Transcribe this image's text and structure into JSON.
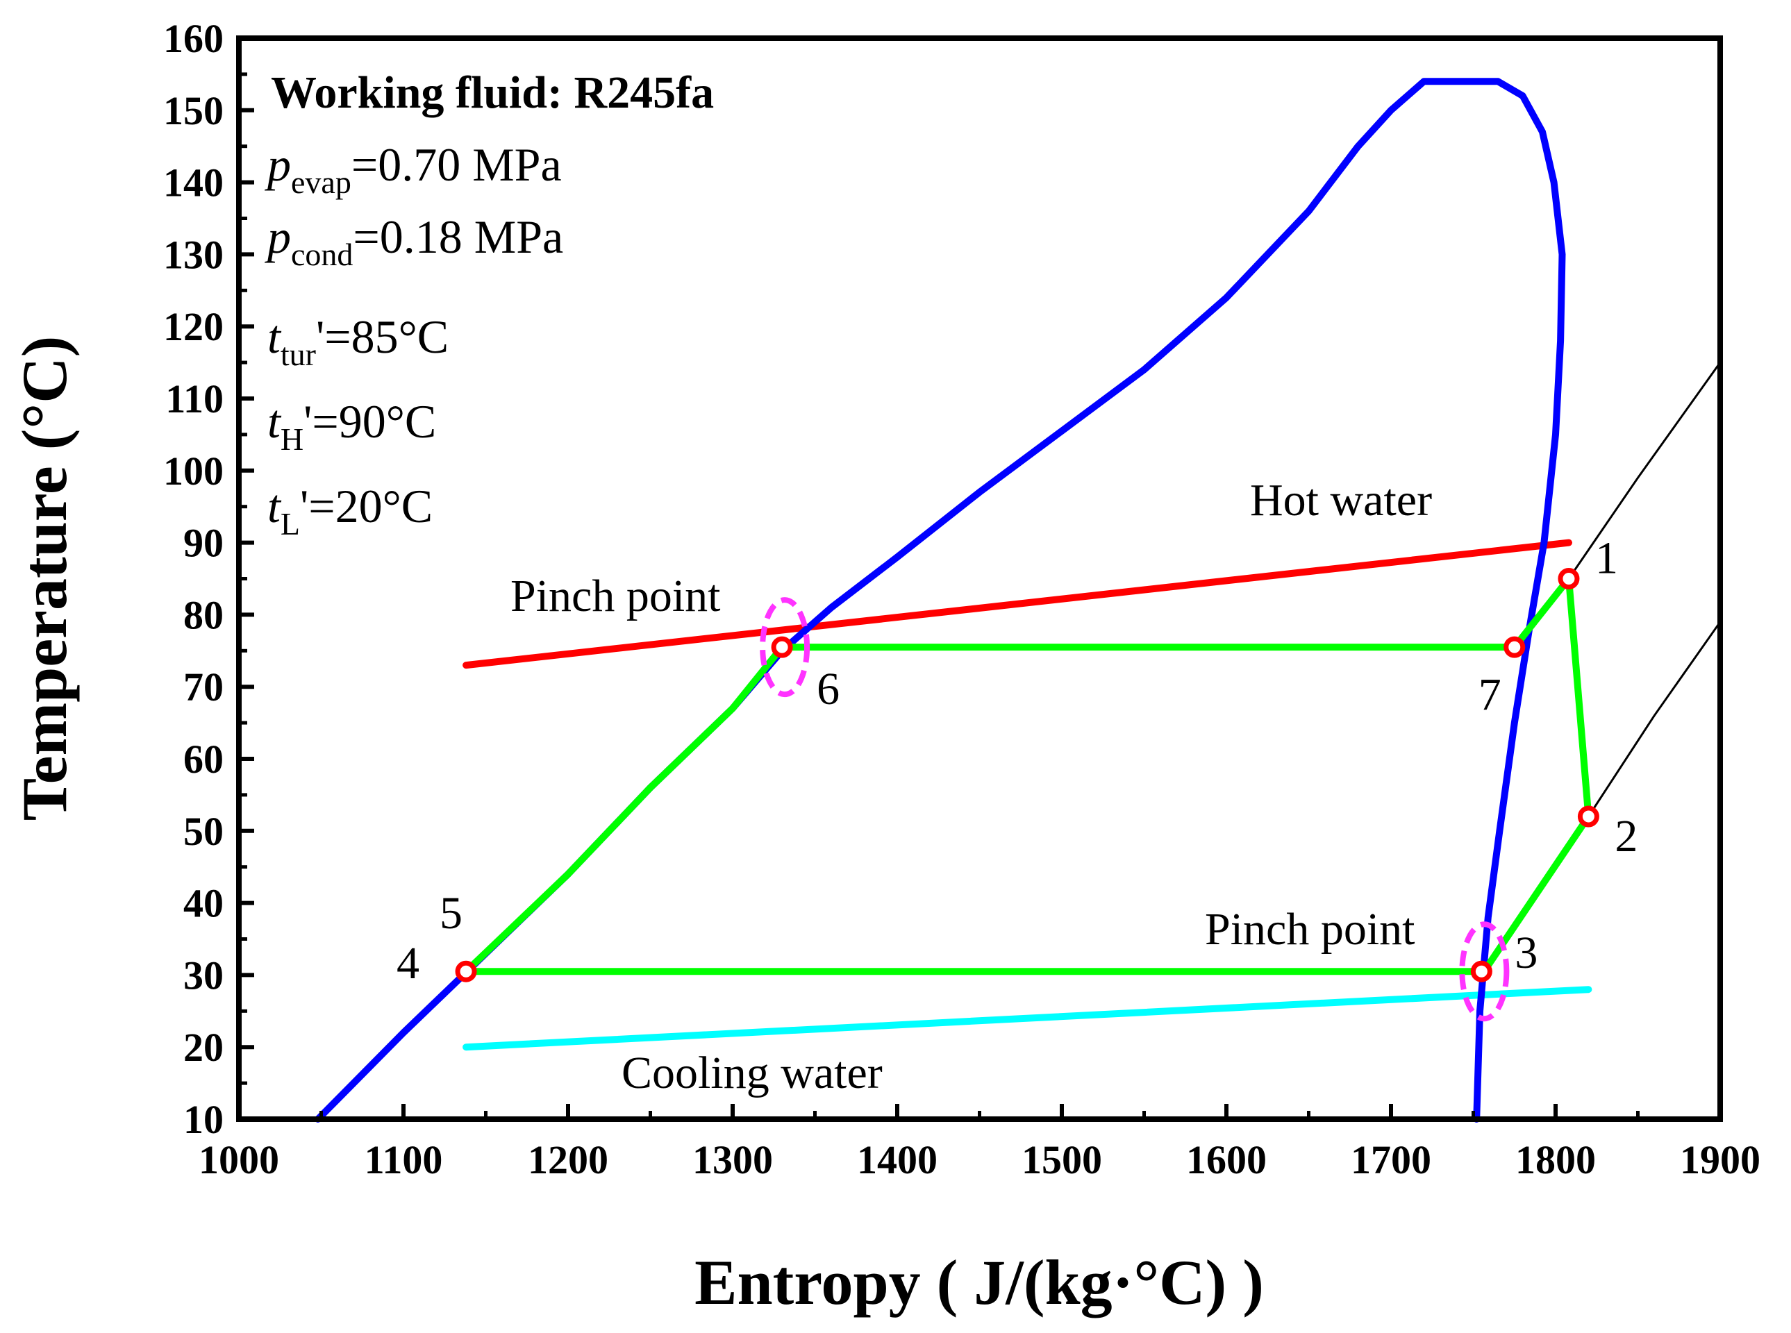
{
  "chart_data": {
    "type": "line",
    "title": "",
    "xlabel": "Entropy ( J/(kg·°C) )",
    "ylabel": "Temperature (°C)",
    "xlim": [
      1000,
      1900
    ],
    "ylim": [
      10,
      160
    ],
    "xticks": [
      "1000",
      "1100",
      "1200",
      "1300",
      "1400",
      "1500",
      "1600",
      "1700",
      "1800",
      "1900"
    ],
    "yticks": [
      "10",
      "20",
      "30",
      "40",
      "50",
      "60",
      "70",
      "80",
      "90",
      "100",
      "110",
      "120",
      "130",
      "140",
      "150",
      "160"
    ],
    "grid": false,
    "info": {
      "heading": "Working fluid: R245fa",
      "lines": [
        {
          "sym": "p",
          "sub": "evap",
          "rest": "=0.70 MPa"
        },
        {
          "sym": "p",
          "sub": "cond",
          "rest": "=0.18 MPa"
        },
        {
          "sym": "t",
          "sub": "tur",
          "rest": "'=85°C"
        },
        {
          "sym": "t",
          "sub": "H",
          "rest": "'=90°C"
        },
        {
          "sym": "t",
          "sub": "L",
          "rest": "'=20°C"
        }
      ]
    },
    "annotations": {
      "hot_water": "Hot water",
      "cooling_water": "Cooling water",
      "pinch_upper": "Pinch point",
      "pinch_lower": "Pinch point"
    },
    "series": [
      {
        "name": "saturation-dome",
        "color": "#0000ff",
        "points": [
          [
            1048,
            10
          ],
          [
            1100,
            22
          ],
          [
            1150,
            33
          ],
          [
            1200,
            44
          ],
          [
            1250,
            56
          ],
          [
            1300,
            67
          ],
          [
            1330,
            75
          ],
          [
            1360,
            81
          ],
          [
            1400,
            88
          ],
          [
            1450,
            97
          ],
          [
            1500,
            105.5
          ],
          [
            1550,
            114
          ],
          [
            1600,
            124
          ],
          [
            1650,
            136
          ],
          [
            1680,
            145
          ],
          [
            1700,
            150
          ],
          [
            1720,
            154
          ],
          [
            1745,
            154
          ],
          [
            1765,
            154
          ],
          [
            1780,
            152
          ],
          [
            1792,
            147
          ],
          [
            1799,
            140
          ],
          [
            1804,
            130
          ],
          [
            1803,
            118
          ],
          [
            1800,
            105
          ],
          [
            1793,
            90
          ],
          [
            1784,
            78
          ],
          [
            1775,
            65
          ],
          [
            1766,
            50
          ],
          [
            1759,
            38
          ],
          [
            1754,
            25
          ],
          [
            1752,
            10
          ]
        ]
      },
      {
        "name": "isobar-high",
        "color": "#000000",
        "points": [
          [
            1808,
            85
          ],
          [
            1850,
            99
          ],
          [
            1900,
            115
          ]
        ]
      },
      {
        "name": "isobar-low",
        "color": "#000000",
        "points": [
          [
            1820,
            52
          ],
          [
            1860,
            66
          ],
          [
            1900,
            79
          ]
        ]
      },
      {
        "name": "hot-water",
        "color": "#ff0000",
        "points": [
          [
            1138,
            73
          ],
          [
            1808,
            90
          ]
        ]
      },
      {
        "name": "cooling-water",
        "color": "#00ffff",
        "points": [
          [
            1138,
            20
          ],
          [
            1820,
            28
          ]
        ]
      },
      {
        "name": "orc-cycle",
        "color": "#00ff00",
        "points": [
          [
            1138,
            30.5
          ],
          [
            1200,
            44
          ],
          [
            1250,
            56
          ],
          [
            1300,
            67
          ],
          [
            1330,
            75.5
          ],
          [
            1775,
            75.5
          ],
          [
            1808,
            85
          ],
          [
            1820,
            52
          ],
          [
            1758,
            31
          ],
          [
            1755,
            30.5
          ],
          [
            1138,
            30.5
          ]
        ]
      }
    ],
    "state_points": [
      {
        "label": "1",
        "x": 1808,
        "y": 85
      },
      {
        "label": "2",
        "x": 1820,
        "y": 52
      },
      {
        "label": "3",
        "x": 1755,
        "y": 30.5
      },
      {
        "label": "4",
        "x": 1138,
        "y": 30.5
      },
      {
        "label": "5",
        "x": 1138,
        "y": 30.5
      },
      {
        "label": "6",
        "x": 1330,
        "y": 75.5
      },
      {
        "label": "7",
        "x": 1775,
        "y": 75.5
      }
    ],
    "pinch_regions": [
      {
        "name": "upper",
        "x": 1330,
        "y": 75.5
      },
      {
        "name": "lower",
        "x": 1755,
        "y": 30.5
      }
    ]
  }
}
